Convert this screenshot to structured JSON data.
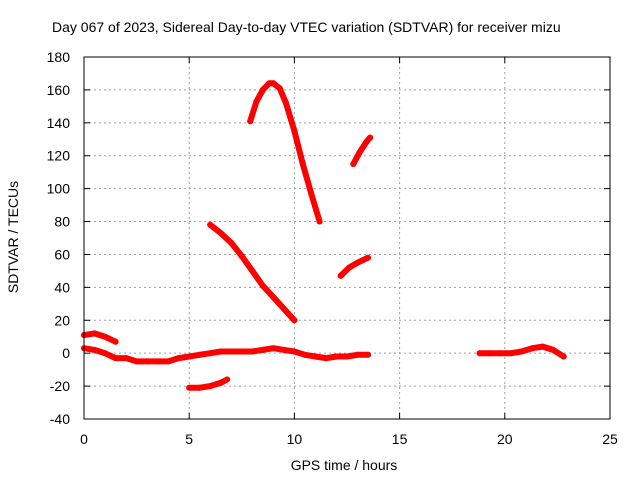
{
  "chart_data": {
    "type": "line",
    "title": "Day 067 of 2023, Sidereal Day-to-day VTEC variation (SDTVAR) for receiver mizu",
    "xlabel": "GPS time / hours",
    "ylabel": "SDTVAR / TECUs",
    "xlim": [
      0,
      25
    ],
    "ylim": [
      -40,
      180
    ],
    "xticks": [
      0,
      5,
      10,
      15,
      20,
      25
    ],
    "yticks": [
      -40,
      -20,
      0,
      20,
      40,
      60,
      80,
      100,
      120,
      140,
      160,
      180
    ],
    "grid": true,
    "color": "#ff0000",
    "series": [
      {
        "name": "s1",
        "x": [
          0,
          0.5,
          1.0,
          1.5
        ],
        "y": [
          11,
          12,
          10,
          7
        ]
      },
      {
        "name": "s2",
        "x": [
          0,
          0.5,
          1.0,
          1.5,
          2.0,
          2.5,
          3.0,
          3.5,
          4.0,
          4.5,
          5.0,
          5.5,
          6.0,
          6.5,
          7.0,
          7.5,
          8.0,
          8.5,
          9.0,
          9.5,
          10.0,
          10.5,
          11.0,
          11.5,
          12.0,
          12.5,
          13.0,
          13.5
        ],
        "y": [
          3,
          2,
          0,
          -3,
          -3,
          -5,
          -5,
          -5,
          -5,
          -3,
          -2,
          -1,
          0,
          1,
          1,
          1,
          1,
          2,
          3,
          2,
          1,
          -1,
          -2,
          -3,
          -2,
          -2,
          -1,
          -1
        ]
      },
      {
        "name": "s3",
        "x": [
          5.0,
          5.5,
          6.0,
          6.5,
          6.8
        ],
        "y": [
          -21,
          -21,
          -20,
          -18,
          -16
        ]
      },
      {
        "name": "s4",
        "x": [
          6.0,
          6.5,
          7.0,
          7.5,
          8.0,
          8.5,
          9.0,
          9.5,
          10.0
        ],
        "y": [
          78,
          73,
          67,
          59,
          50,
          41,
          34,
          27,
          20
        ]
      },
      {
        "name": "s5",
        "x": [
          7.9,
          8.2,
          8.5,
          8.8,
          9.0,
          9.3,
          9.6,
          10.0,
          10.4,
          10.8,
          11.2
        ],
        "y": [
          141,
          153,
          160,
          164,
          164,
          161,
          152,
          135,
          115,
          97,
          80
        ]
      },
      {
        "name": "s6",
        "x": [
          12.2,
          12.6,
          13.0,
          13.5
        ],
        "y": [
          47,
          52,
          55,
          58
        ]
      },
      {
        "name": "s7",
        "x": [
          12.8,
          13.1,
          13.4,
          13.6
        ],
        "y": [
          115,
          122,
          128,
          131
        ]
      },
      {
        "name": "s8",
        "x": [
          18.8,
          19.3,
          19.8,
          20.3,
          20.8,
          21.3,
          21.8,
          22.3,
          22.8
        ],
        "y": [
          0,
          0,
          0,
          0,
          1,
          3,
          4,
          2,
          -2
        ]
      }
    ]
  }
}
